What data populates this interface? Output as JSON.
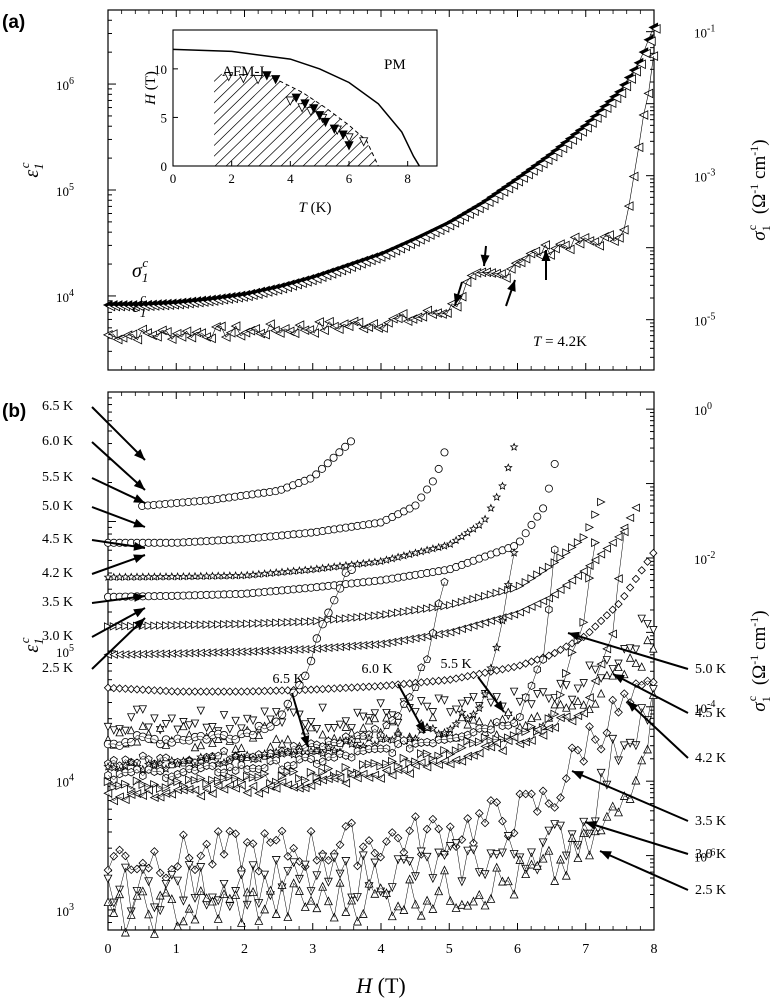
{
  "chart_data": [
    {
      "panel": "(a)",
      "type": "scatter",
      "xlabel": "H (T)",
      "ylabel_left": "ε1c",
      "ylabel_right": "σ1c (Ω-1 cm-1)",
      "xlim": [
        0,
        8
      ],
      "x_ticks": [
        0,
        1,
        2,
        3,
        4,
        5,
        6,
        7,
        8
      ],
      "y_left": {
        "scale": "log",
        "ylim": [
          2000,
          5000000
        ],
        "tick_labels": [
          "10^4",
          "10^5",
          "10^6"
        ],
        "ticks": [
          10000,
          100000,
          1000000
        ]
      },
      "y_right": {
        "scale": "log",
        "ylim": [
          2e-06,
          0.2
        ],
        "tick_labels": [
          "10^-5",
          "10^-3",
          "10^-1"
        ],
        "ticks": [
          1e-05,
          0.001,
          0.1
        ]
      },
      "annotation": "T = 4.2K",
      "series": [
        {
          "name": "σ1c",
          "axis": "right",
          "marker": "filled-left-triangle",
          "x": [
            0,
            0.5,
            1,
            1.5,
            2,
            2.5,
            3,
            3.5,
            4,
            4.5,
            5,
            5.5,
            6,
            6.5,
            7,
            7.5,
            7.8,
            8.0
          ],
          "values": [
            1.6e-05,
            1.6e-05,
            1.7e-05,
            1.9e-05,
            2.2e-05,
            2.8e-05,
            3.8e-05,
            5.5e-05,
            8e-05,
            0.00013,
            0.00022,
            0.00042,
            0.0009,
            0.002,
            0.005,
            0.015,
            0.04,
            0.12
          ]
        },
        {
          "name": "ε1c",
          "axis": "left",
          "marker": "open-left-triangle",
          "x": [
            0,
            1,
            2,
            3,
            4,
            4.5,
            5.0,
            5.1,
            5.3,
            5.5,
            5.8,
            6.0,
            6.3,
            6.6,
            7.0,
            7.4,
            7.6,
            7.8,
            8.0
          ],
          "values": [
            4300,
            4400,
            4600,
            5000,
            5600,
            6200,
            7500,
            8500,
            14000,
            15000,
            16000,
            22000,
            25000,
            30000,
            32000,
            34000,
            50000,
            300000,
            1800000
          ]
        }
      ],
      "arrows": [
        5.1,
        5.4,
        5.9,
        6.5
      ],
      "inset": {
        "type": "line",
        "xlabel": "T (K)",
        "ylabel": "H (T)",
        "xlim": [
          0,
          9
        ],
        "ylim": [
          0,
          14
        ],
        "x_ticks": [
          0,
          2,
          4,
          6,
          8
        ],
        "y_ticks": [
          0,
          5,
          10
        ],
        "region_labels": [
          "AFM-I",
          "PM"
        ],
        "boundary": {
          "x": [
            0,
            2,
            4,
            5,
            6,
            7,
            7.8,
            8.2,
            8.4
          ],
          "y": [
            12,
            11.8,
            11,
            10,
            8.6,
            6.4,
            3.5,
            1.0,
            0
          ]
        },
        "points_filled": {
          "x": [
            3.2,
            3.5,
            4.2,
            4.5,
            4.8,
            5.0,
            5.2,
            5.5,
            5.8,
            6.0
          ],
          "y": [
            9.3,
            8.9,
            7.0,
            6.4,
            5.9,
            5.2,
            4.5,
            3.8,
            3.2,
            2.1
          ]
        },
        "points_open": {
          "x": [
            1.9,
            2.4,
            2.9,
            4.0,
            4.4,
            4.7,
            5.1,
            5.6,
            6.0,
            6.5
          ],
          "y": [
            9.2,
            9.0,
            8.9,
            6.7,
            6.0,
            5.6,
            4.9,
            3.7,
            2.9,
            2.5
          ]
        }
      }
    },
    {
      "panel": "(b)",
      "type": "scatter",
      "xlabel": "H (T)",
      "ylabel_left": "ε1c",
      "ylabel_right": "σ1c (Ω-1 cm-1)",
      "xlim": [
        0,
        8
      ],
      "x_ticks": [
        0,
        1,
        2,
        3,
        4,
        5,
        6,
        7,
        8
      ],
      "y_left": {
        "scale": "log",
        "ylim": [
          700,
          10000000
        ],
        "tick_labels": [
          "10^3",
          "10^4",
          "10^5"
        ],
        "ticks": [
          1000,
          10000,
          100000
        ]
      },
      "y_right": {
        "scale": "log",
        "ylim": [
          1e-07,
          1.7
        ],
        "tick_labels": [
          "10^-6",
          "10^-4",
          "10^-2",
          "10^0"
        ],
        "ticks": [
          1e-06,
          0.0001,
          0.01,
          1
        ]
      },
      "sigma_series": [
        {
          "name": "6.5 K",
          "marker": "circle",
          "x": [
            0.5,
            1.5,
            2.5,
            3.0,
            3.3,
            3.6
          ],
          "values": [
            0.05,
            0.06,
            0.08,
            0.12,
            0.22,
            0.4
          ]
        },
        {
          "name": "6.0 K",
          "marker": "circle",
          "x": [
            0,
            1,
            2,
            3,
            4,
            4.5,
            4.8,
            5.0
          ],
          "values": [
            0.016,
            0.016,
            0.018,
            0.022,
            0.03,
            0.05,
            0.12,
            0.4
          ]
        },
        {
          "name": "5.5 K",
          "marker": "star",
          "x": [
            0,
            1,
            2,
            3,
            4,
            5,
            5.5,
            5.8,
            6.0
          ],
          "values": [
            0.0055,
            0.0056,
            0.0058,
            0.007,
            0.009,
            0.015,
            0.03,
            0.1,
            0.45
          ]
        },
        {
          "name": "5.0 K",
          "marker": "circle",
          "x": [
            0,
            1,
            2,
            3,
            4,
            5,
            6,
            6.4,
            6.6
          ],
          "values": [
            0.003,
            0.0031,
            0.0033,
            0.004,
            0.005,
            0.007,
            0.015,
            0.05,
            0.3
          ]
        },
        {
          "name": "4.5 K",
          "marker": "right-triangle",
          "x": [
            0,
            1,
            2,
            3,
            4,
            5,
            6,
            6.5,
            7.0,
            7.3
          ],
          "values": [
            0.0012,
            0.00125,
            0.0013,
            0.0014,
            0.0017,
            0.0023,
            0.004,
            0.008,
            0.02,
            0.08
          ]
        },
        {
          "name": "4.2 K",
          "marker": "left-triangle",
          "x": [
            0,
            1,
            2,
            3,
            4,
            5,
            6,
            6.5,
            7.0,
            7.5,
            7.8
          ],
          "values": [
            0.0005,
            0.00052,
            0.00055,
            0.0006,
            0.0007,
            0.001,
            0.0018,
            0.003,
            0.007,
            0.02,
            0.06
          ]
        },
        {
          "name": "3.5 K",
          "marker": "diamond",
          "x": [
            0,
            1,
            2,
            3,
            4,
            5,
            6,
            6.5,
            7.0,
            7.5,
            8.0
          ],
          "values": [
            0.00018,
            0.00016,
            0.00016,
            0.00017,
            0.00019,
            0.00023,
            0.00035,
            0.0005,
            0.0009,
            0.0025,
            0.012
          ]
        },
        {
          "name": "3.0 K",
          "marker": "down-triangle",
          "x": [
            0,
            1,
            2,
            3,
            4,
            5,
            6,
            6.5,
            7.0,
            7.5,
            8.0
          ],
          "values": [
            7e-05,
            7e-05,
            7e-05,
            7e-05,
            8e-05,
            9e-05,
            0.00011,
            0.00013,
            0.00022,
            0.0005,
            0.0016
          ]
        },
        {
          "name": "2.5 K",
          "marker": "up-triangle",
          "x": [
            0,
            1,
            2,
            3,
            4,
            5,
            6,
            6.5,
            7.0,
            7.5,
            8.0
          ],
          "values": [
            4e-05,
            4e-05,
            4e-05,
            4e-05,
            5e-05,
            5e-05,
            6e-05,
            8e-05,
            0.00012,
            0.00025,
            0.0007
          ]
        }
      ],
      "epsilon_series": [
        {
          "name": "6.5 K",
          "marker": "circle",
          "x": [
            0,
            1,
            2,
            2.5,
            2.8,
            3.0,
            3.2,
            3.4,
            3.6
          ],
          "values": [
            20000,
            21000,
            23000,
            30000,
            50000,
            100000,
            170000,
            300000,
            500000
          ]
        },
        {
          "name": "6.0 K",
          "marker": "pentagon",
          "x": [
            0,
            1,
            2,
            3,
            4,
            4.4,
            4.7,
            4.9,
            5.0
          ],
          "values": [
            14000,
            14500,
            16000,
            18000,
            24000,
            40000,
            100000,
            300000,
            600000
          ]
        },
        {
          "name": "5.5 K",
          "marker": "star",
          "x": [
            0,
            1,
            2,
            3,
            4,
            5,
            5.5,
            5.8,
            6.0
          ],
          "values": [
            13000,
            13500,
            14500,
            17000,
            20000,
            26000,
            40000,
            200000,
            900000
          ]
        },
        {
          "name": "5.0 K",
          "marker": "hexagon",
          "x": [
            0,
            1,
            2,
            3,
            4,
            5,
            6,
            6.4,
            6.6
          ],
          "values": [
            11000,
            11500,
            12500,
            14000,
            17000,
            22000,
            30000,
            100000,
            1100000
          ]
        },
        {
          "name": "4.5 K",
          "marker": "right-triangle",
          "x": [
            0,
            1,
            2,
            3,
            4,
            5,
            6,
            6.5,
            7.0,
            7.2
          ],
          "values": [
            9000,
            9500,
            10000,
            11000,
            13000,
            17000,
            24000,
            28000,
            200000,
            1300000
          ]
        },
        {
          "name": "4.2 K",
          "marker": "left-triangle",
          "x": [
            0,
            1,
            2,
            3,
            4,
            5,
            6,
            6.5,
            7.0,
            7.4,
            7.6
          ],
          "values": [
            7500,
            8000,
            8500,
            9500,
            11000,
            14000,
            20000,
            26000,
            35000,
            150000,
            1200000
          ]
        },
        {
          "name": "3.5 K",
          "marker": "diamond",
          "x": [
            0,
            1,
            2,
            3,
            4,
            5,
            6,
            6.5,
            7.0,
            7.5,
            8.0
          ],
          "values": [
            2500,
            2600,
            2800,
            3000,
            3400,
            4000,
            5500,
            7000,
            20000,
            35000,
            45000
          ]
        },
        {
          "name": "3.0 K",
          "marker": "down-triangle",
          "x": [
            0,
            1,
            2,
            3,
            4,
            5,
            6,
            6.5,
            7.0,
            7.5,
            8.0
          ],
          "values": [
            1400,
            1500,
            1600,
            1700,
            1900,
            2200,
            2800,
            3200,
            4500,
            20000,
            40000
          ]
        },
        {
          "name": "2.5 K",
          "marker": "up-triangle",
          "x": [
            0,
            1,
            2,
            3,
            4,
            5,
            6,
            6.5,
            7.0,
            7.5,
            8.0
          ],
          "values": [
            900,
            1000,
            1100,
            1150,
            1250,
            1400,
            1700,
            2000,
            2800,
            6000,
            35000
          ]
        }
      ],
      "left_labels": [
        "6.5 K",
        "6.0 K",
        "5.5 K",
        "5.0 K",
        "4.5 K",
        "4.2 K",
        "3.5 K",
        "3.0 K",
        "2.5 K"
      ],
      "middle_labels": [
        "6.5 K",
        "6.0 K",
        "5.5 K"
      ],
      "right_labels": [
        "5.0 K",
        "4.5 K",
        "4.2 K",
        "3.5 K",
        "3.0 K",
        "2.5 K"
      ]
    }
  ]
}
